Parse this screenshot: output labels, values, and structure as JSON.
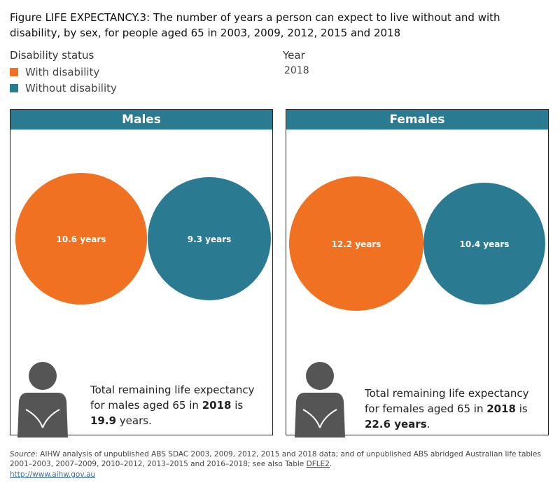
{
  "title": "Figure LIFE EXPECTANCY.3: The number of years a person can expect to live without and with disability, by sex, for people aged 65 in 2003, 2009, 2012, 2015 and 2018",
  "legend": {
    "heading": "Disability status",
    "items": [
      {
        "label": "With disability",
        "color": "#f07122"
      },
      {
        "label": "Without disability",
        "color": "#2a7b91"
      }
    ]
  },
  "year_filter": {
    "heading": "Year",
    "value": "2018"
  },
  "colors": {
    "with": "#f07122",
    "without": "#2a7b91",
    "header": "#2a7b91",
    "person": "#555555"
  },
  "chart_data": [
    {
      "type": "bubble",
      "panel": "Males",
      "series": [
        {
          "name": "With disability",
          "value": 10.6,
          "label": "10.6 years"
        },
        {
          "name": "Without disability",
          "value": 9.3,
          "label": "9.3 years"
        }
      ],
      "caption": {
        "pre": "Total remaining life expectancy for males aged 65 in ",
        "year": "2018",
        "mid": " is ",
        "total": "19.9",
        "post": " years."
      }
    },
    {
      "type": "bubble",
      "panel": "Females",
      "series": [
        {
          "name": "With disability",
          "value": 12.2,
          "label": "12.2 years"
        },
        {
          "name": "Without disability",
          "value": 10.4,
          "label": "10.4 years"
        }
      ],
      "caption": {
        "pre": "Total remaining life expectancy for females aged 65 in ",
        "year": "2018",
        "mid": " is ",
        "total": "22.6 years",
        "post": "."
      }
    }
  ],
  "source": {
    "label": "Source",
    "text": ": AIHW analysis of unpublished ABS SDAC 2003, 2009, 2012, 2015 and 2018 data; and of unpublished ABS abridged Australian life tables 2001–2003, 2007–2009, 2010–2012, 2013–2015 and 2016–2018; see also Table ",
    "table": "DFLE2",
    "end": ".",
    "link": "http://www.aihw.gov.au"
  }
}
